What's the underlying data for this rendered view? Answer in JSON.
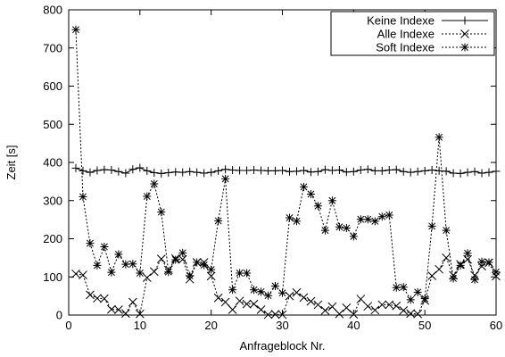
{
  "chart_data": {
    "type": "line",
    "xlabel": "Anfrageblock Nr.",
    "ylabel": "Zeit [s]",
    "xlim": [
      0,
      60
    ],
    "ylim": [
      0,
      800
    ],
    "xticks": [
      0,
      10,
      20,
      30,
      40,
      50,
      60
    ],
    "yticks": [
      0,
      100,
      200,
      300,
      400,
      500,
      600,
      700,
      800
    ],
    "grid": false,
    "legend_position": "top-right",
    "x": [
      1,
      2,
      3,
      4,
      5,
      6,
      7,
      8,
      9,
      10,
      11,
      12,
      13,
      14,
      15,
      16,
      17,
      18,
      19,
      20,
      21,
      22,
      23,
      24,
      25,
      26,
      27,
      28,
      29,
      30,
      31,
      32,
      33,
      34,
      35,
      36,
      37,
      38,
      39,
      40,
      41,
      42,
      43,
      44,
      45,
      46,
      47,
      48,
      49,
      50,
      51,
      52,
      53,
      54,
      55,
      56,
      57,
      58,
      59,
      60
    ],
    "series": [
      {
        "name": "Keine Indexe",
        "marker": "plus",
        "line_style": "solid",
        "values": [
          385,
          378,
          374,
          379,
          381,
          380,
          376,
          372,
          382,
          386,
          378,
          373,
          371,
          373,
          375,
          374,
          376,
          374,
          372,
          374,
          378,
          382,
          380,
          379,
          379,
          380,
          379,
          378,
          378,
          379,
          376,
          377,
          379,
          375,
          376,
          381,
          379,
          380,
          375,
          376,
          380,
          382,
          378,
          378,
          380,
          381,
          376,
          374,
          376,
          378,
          380,
          378,
          377,
          372,
          371,
          374,
          376,
          372,
          374,
          377
        ]
      },
      {
        "name": "Alle Indexe",
        "marker": "x",
        "line_style": "dotted",
        "values": [
          108,
          105,
          53,
          44,
          43,
          15,
          14,
          4,
          34,
          3,
          98,
          114,
          147,
          118,
          148,
          146,
          94,
          138,
          138,
          102,
          45,
          34,
          14,
          37,
          29,
          29,
          14,
          1,
          2,
          1,
          50,
          59,
          46,
          36,
          27,
          12,
          22,
          3,
          19,
          2,
          42,
          23,
          13,
          27,
          27,
          24,
          12,
          4,
          3,
          38,
          103,
          120,
          150,
          104,
          133,
          146,
          104,
          128,
          137,
          102
        ]
      },
      {
        "name": "Soft Indexe",
        "marker": "star",
        "line_style": "dotted",
        "values": [
          748,
          310,
          188,
          130,
          179,
          112,
          159,
          133,
          134,
          110,
          311,
          344,
          270,
          113,
          145,
          163,
          103,
          138,
          131,
          119,
          247,
          357,
          66,
          110,
          110,
          66,
          61,
          51,
          76,
          58,
          255,
          246,
          336,
          317,
          286,
          222,
          300,
          231,
          228,
          206,
          251,
          251,
          246,
          258,
          262,
          72,
          73,
          40,
          60,
          43,
          233,
          466,
          222,
          96,
          130,
          162,
          93,
          140,
          138,
          113
        ]
      }
    ]
  }
}
